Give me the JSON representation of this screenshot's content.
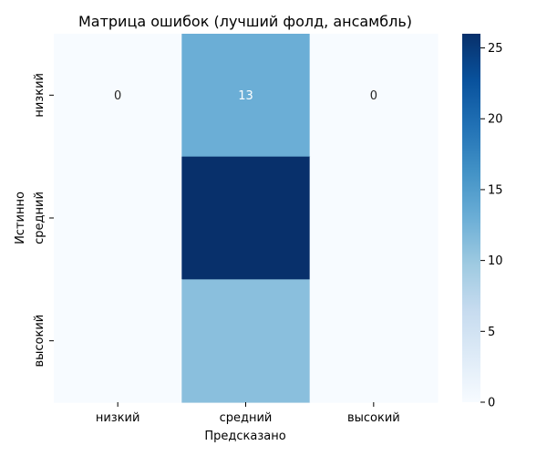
{
  "chart_data": {
    "type": "heatmap",
    "title": "Матрица ошибок (лучший фолд, ансамбль)",
    "xlabel": "Предсказано",
    "ylabel": "Истинно",
    "x_categories": [
      "низкий",
      "средний",
      "высокий"
    ],
    "y_categories": [
      "низкий",
      "средний",
      "высокий"
    ],
    "values": [
      [
        0,
        13,
        0
      ],
      [
        0,
        26,
        0
      ],
      [
        0,
        11,
        0
      ]
    ],
    "annotated_cells": [
      {
        "row": 0,
        "col": 0,
        "label": "0"
      },
      {
        "row": 0,
        "col": 1,
        "label": "13"
      },
      {
        "row": 0,
        "col": 2,
        "label": "0"
      }
    ],
    "colormap": "Blues",
    "colorbar": {
      "range": [
        0,
        26
      ],
      "ticks": [
        0,
        5,
        10,
        15,
        20,
        25
      ]
    },
    "grid": false
  }
}
